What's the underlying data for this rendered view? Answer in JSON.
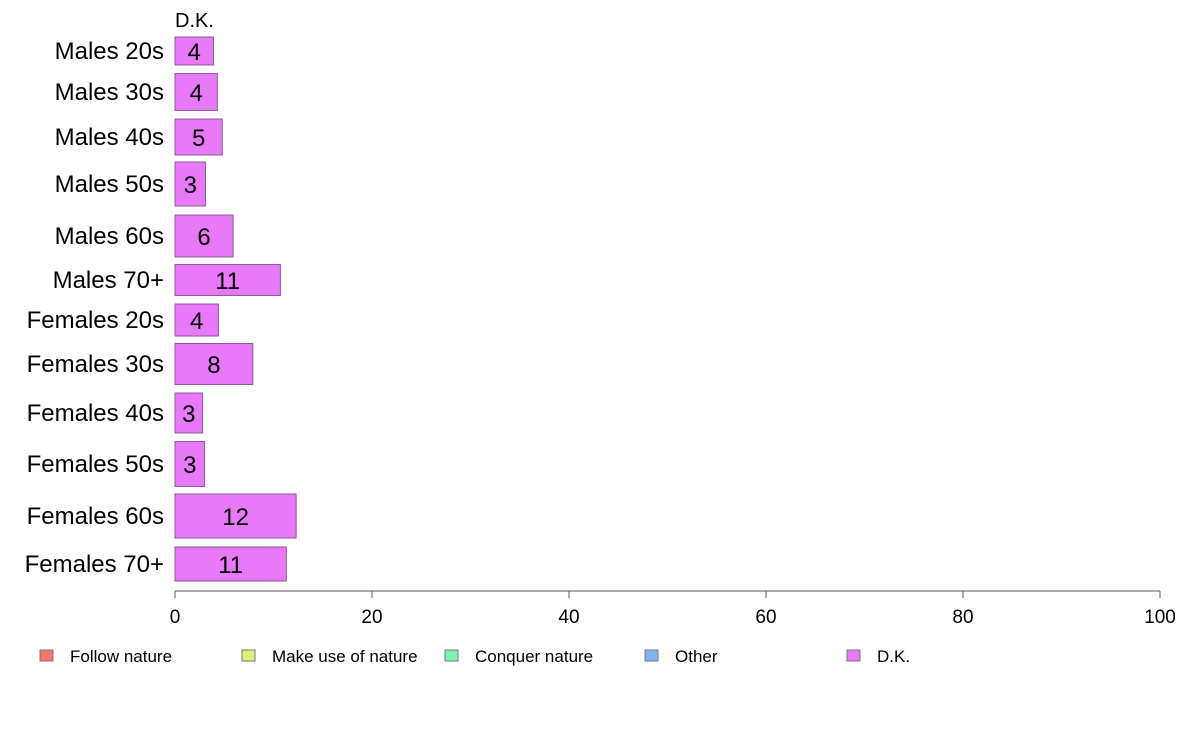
{
  "chart_data": {
    "type": "bar",
    "orientation": "horizontal",
    "stacked": true,
    "column_title": "D.K.",
    "categories": [
      "Males 20s",
      "Males 30s",
      "Males 40s",
      "Males 50s",
      "Males 60s",
      "Males 70+",
      "Females 20s",
      "Females 30s",
      "Females 40s",
      "Females 50s",
      "Females 60s",
      "Females 70+"
    ],
    "series": [
      {
        "name": "Follow nature",
        "color": "#F8766D",
        "values": [
          0,
          0,
          0,
          0,
          0,
          0,
          0,
          0,
          0,
          0,
          0,
          0
        ]
      },
      {
        "name": "Make use of nature",
        "color": "#E2F07A",
        "values": [
          0,
          0,
          0,
          0,
          0,
          0,
          0,
          0,
          0,
          0,
          0,
          0
        ]
      },
      {
        "name": "Conquer nature",
        "color": "#7CF2B0",
        "values": [
          0,
          0,
          0,
          0,
          0,
          0,
          0,
          0,
          0,
          0,
          0,
          0
        ]
      },
      {
        "name": "Other",
        "color": "#7FB3F0",
        "values": [
          0,
          0,
          0,
          0,
          0,
          0,
          0,
          0,
          0,
          0,
          0,
          0
        ]
      },
      {
        "name": "D.K.",
        "color": "#E879F8",
        "values": [
          3.9,
          4.3,
          4.8,
          3.1,
          5.9,
          10.7,
          4.4,
          7.9,
          2.8,
          3.0,
          12.3,
          11.3
        ]
      }
    ],
    "bar_labels": [
      "4",
      "4",
      "5",
      "3",
      "6",
      "11",
      "4",
      "8",
      "3",
      "3",
      "12",
      "11"
    ],
    "xlim": [
      0,
      100
    ],
    "xticks": [
      0,
      20,
      40,
      60,
      80,
      100
    ],
    "grid": false,
    "legend_position": "bottom"
  }
}
